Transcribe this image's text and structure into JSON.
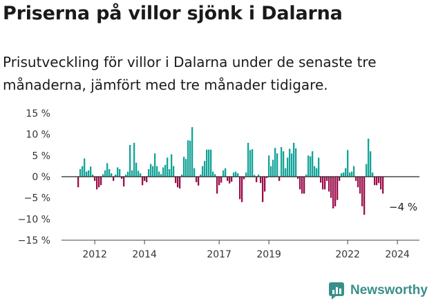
{
  "title": "Priserna på villor sjönk i Dalarna",
  "subtitle": "Prisutveckling för villor i Dalarna under de senaste tre månaderna, jämfört med tre månader tidigare.",
  "brand": "Newsworthy",
  "colors": {
    "positive": "#12a398",
    "negative": "#9b0d4a",
    "axis": "#222222",
    "brand": "#3a8f8a"
  },
  "chart_data": {
    "type": "bar",
    "title": "Priserna på villor sjönk i Dalarna",
    "xlabel": "",
    "ylabel": "",
    "ylim": [
      -15,
      15
    ],
    "yticks": [
      15,
      10,
      5,
      0,
      -5,
      -10,
      -15
    ],
    "ytick_labels": [
      "15 %",
      "10 %",
      "5 %",
      "0 %",
      "−5 %",
      "−10 %",
      "−15 %"
    ],
    "xtick_labels": [
      "2012",
      "2014",
      "2017",
      "2019",
      "2022",
      "2024"
    ],
    "xtick_index": [
      8,
      32,
      68,
      92,
      130,
      154
    ],
    "annotation": "−4 %",
    "values": [
      -2.5,
      1.8,
      2.5,
      4.3,
      1.2,
      1.5,
      2.4,
      0.5,
      -1.0,
      -3.0,
      -2.5,
      -2.0,
      0.6,
      1.5,
      3.2,
      1.8,
      0.8,
      -1.0,
      0.5,
      2.2,
      1.8,
      -0.5,
      -2.3,
      0.5,
      1.2,
      7.5,
      1.5,
      8.0,
      3.3,
      1.4,
      0.8,
      -2.0,
      -1.0,
      -1.3,
      1.8,
      3.0,
      2.5,
      5.5,
      2.5,
      1.2,
      0.6,
      2.2,
      2.8,
      4.5,
      1.8,
      5.3,
      2.5,
      -1.5,
      -2.5,
      -2.8,
      0.5,
      4.7,
      4.2,
      8.6,
      8.5,
      11.7,
      2.0,
      -1.3,
      -2.1,
      0.5,
      2.5,
      3.7,
      6.4,
      6.4,
      6.4,
      1.2,
      0.6,
      -4.0,
      -2.0,
      -1.4,
      1.5,
      2.0,
      -1.0,
      -1.6,
      -1.2,
      1.0,
      1.2,
      0.8,
      -5.3,
      -6.0,
      -0.6,
      1.0,
      8.0,
      6.3,
      6.5,
      0.4,
      -1.3,
      0.5,
      -1.5,
      -6.0,
      -3.5,
      -0.3,
      5.0,
      2.5,
      4.0,
      6.8,
      5.5,
      -1.0,
      7.0,
      6.0,
      2.0,
      4.5,
      6.6,
      5.5,
      8.0,
      6.7,
      -0.5,
      -3.0,
      -4.0,
      -4.0,
      0.5,
      5.0,
      4.8,
      6.0,
      2.5,
      2.0,
      4.5,
      -1.4,
      -3.0,
      -3.0,
      -1.0,
      -3.5,
      -5.0,
      -7.5,
      -7.0,
      -5.5,
      -1.0,
      0.8,
      1.0,
      2.0,
      6.3,
      1.0,
      1.2,
      2.5,
      -1.0,
      -2.5,
      -4.0,
      -7.0,
      -9.0,
      3.0,
      9.0,
      6.0,
      1.0,
      -2.0,
      -2.0,
      -1.5,
      -3.0,
      -4.0
    ]
  }
}
